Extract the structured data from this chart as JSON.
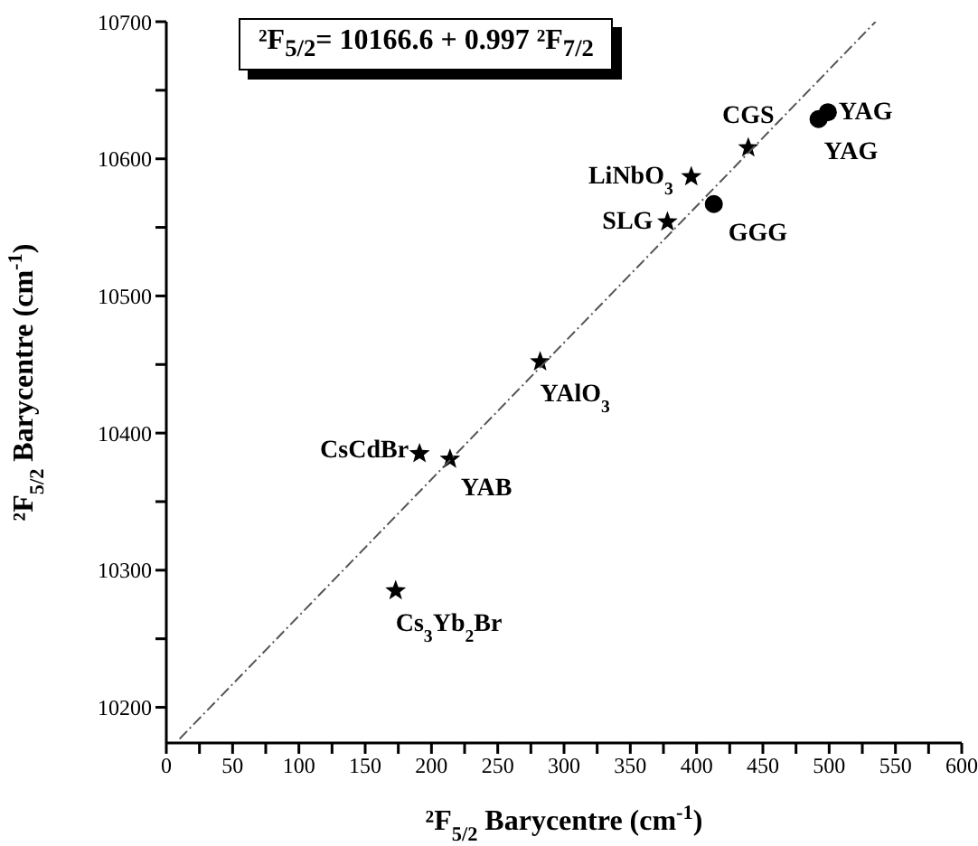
{
  "chart_data": {
    "type": "scatter",
    "xlabel": "²F$_{5/2}$ Barycentre (cm$^{-1}$)",
    "ylabel": "²F$_{5/2}$ Barycentre (cm$^{-1}$)",
    "xlim": [
      0,
      600
    ],
    "xticks": [
      0,
      {
        "value": 25,
        "label": null
      },
      50,
      {
        "value": 75,
        "label": null
      },
      100,
      {
        "value": 125,
        "label": null
      },
      150,
      {
        "value": 175,
        "label": null
      },
      200,
      {
        "value": 225,
        "label": null
      },
      250,
      {
        "value": 275,
        "label": null
      },
      300,
      {
        "value": 325,
        "label": null
      },
      350,
      {
        "value": 375,
        "label": null
      },
      400,
      {
        "value": 425,
        "label": null
      },
      450,
      {
        "value": 475,
        "label": null
      },
      500,
      {
        "value": 525,
        "label": null
      },
      550,
      {
        "value": 575,
        "label": null
      },
      600
    ],
    "ylim": [
      10174,
      10700
    ],
    "yticks": [
      10200,
      {
        "value": 10250,
        "label": null
      },
      10300,
      {
        "value": 10350,
        "label": null
      },
      10400,
      {
        "value": 10450,
        "label": null
      },
      10500,
      {
        "value": 10550,
        "label": null
      },
      10600,
      {
        "value": 10650,
        "label": null
      },
      10700
    ],
    "grid": false,
    "legend": false,
    "series": [
      {
        "marker": "star",
        "color": "#000000",
        "x": [
          439,
          396,
          378,
          282,
          191,
          214,
          173
        ],
        "values": [
          10608,
          10587,
          10554,
          10452,
          10385,
          10381,
          10285
        ]
      },
      {
        "marker": "circle",
        "color": "#000000",
        "x": [
          413
        ],
        "values": [
          10567
        ]
      },
      {
        "marker": "circle",
        "color": "#000000",
        "x": [
          492,
          499
        ],
        "values": [
          10629,
          10634
        ]
      },
      {
        "type": "line",
        "marker": "none",
        "line_style": "dashed",
        "color": "#555555",
        "x": [
          10,
          535
        ],
        "values": [
          10177,
          10700
        ]
      }
    ],
    "annotations": [
      "²F$_{5/2}$= 10166.6 + 0.997 ²F$_{7/2}$",
      {
        "text": "CGS",
        "x": 439,
        "y": 10608
      },
      {
        "text": "LiNbO$_{3}$",
        "x": 396,
        "y": 10587
      },
      {
        "text": "SLG",
        "x": 378,
        "y": 10554
      },
      {
        "text": "GGG",
        "x": 413,
        "y": 10567
      },
      {
        "text": "YAG",
        "x": 499,
        "y": 10634
      },
      {
        "text": "YAG",
        "x": 492,
        "y": 10629
      },
      {
        "text": "YAlO$_{3}$",
        "x": 282,
        "y": 10452
      },
      {
        "text": "CsCdBr",
        "x": 191,
        "y": 10385
      },
      {
        "text": "YAB",
        "x": 214,
        "y": 10381
      },
      {
        "text": "Cs$_{3}$Yb$_{2}$Br",
        "x": 173,
        "y": 10285
      }
    ]
  }
}
